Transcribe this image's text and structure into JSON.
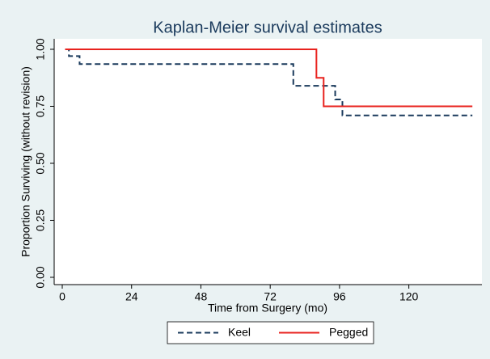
{
  "chart_data": {
    "type": "step",
    "title": "Kaplan-Meier survival estimates",
    "x_label": "Time from Surgery (mo)",
    "y_label": "Proportion Surviving (without revision)",
    "xlim": [
      -2.8,
      145.3
    ],
    "xticks": [
      0,
      24,
      48,
      72,
      96,
      120
    ],
    "ylim": [
      -0.032,
      1.046
    ],
    "yticks": [
      {
        "value": 0,
        "label": "0.00"
      },
      {
        "value": 0.25,
        "label": "0.25"
      },
      {
        "value": 0.5,
        "label": "0.50"
      },
      {
        "value": 0.75,
        "label": "0.75"
      },
      {
        "value": 1,
        "label": "1.00"
      }
    ],
    "series": [
      {
        "name": "Keel",
        "color": "#1a3a5c",
        "dash": true,
        "x": [
          1,
          2.3,
          6,
          80,
          94.5,
          97,
          142
        ],
        "values": [
          1,
          0.97,
          0.935,
          0.84,
          0.78,
          0.71,
          0.71
        ]
      },
      {
        "name": "Pegged",
        "color": "#e8221e",
        "dash": false,
        "x": [
          1,
          88,
          90.5,
          142
        ],
        "values": [
          1,
          0.875,
          0.75,
          0.75
        ]
      }
    ]
  }
}
